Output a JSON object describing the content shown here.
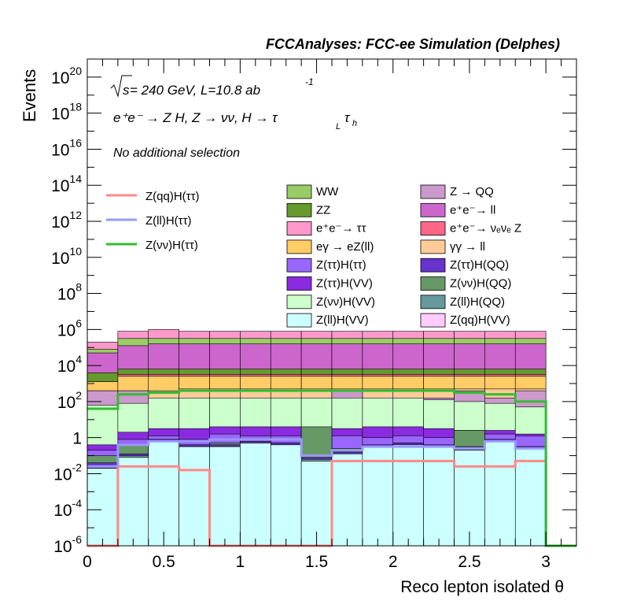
{
  "header": {
    "title": "FCCAnalyses: FCC-ee Simulation (Delphes)",
    "energy_prefix": "s",
    "energy_text": " = 240 GeV, L=10.8 ab",
    "lumi_exponent": "-1",
    "process_text": "e⁺e⁻ → Z H, Z → νν, H → τ",
    "tau_sub_1": "L",
    "tau_sub_2": "h",
    "selection_text": "No additional selection"
  },
  "colors": {
    "WW": "#99cc66",
    "ZZ": "#66992e",
    "ee_tautau": "#ff99cc",
    "egamma_eZll": "#ffcc66",
    "Ztautau_Htautau": "#9966ff",
    "Ztautau_HVV": "#8a2be2",
    "Znunu_HVV": "#ccffcc",
    "Zll_HVV": "#ccffff",
    "Z_QQ": "#cc99cc",
    "ee_ll": "#cc66cc",
    "ee_nunuZ": "#ff6688",
    "gammagamma_ll": "#ffcc99",
    "Ztautau_HQQ": "#6633cc",
    "Znunu_HQQ": "#669966",
    "Zll_HQQ": "#669999",
    "Zqq_HVV": "#ffccff",
    "sig_qq": "#ff8888",
    "sig_ll": "#9999ff",
    "sig_nunu": "#33bb33"
  },
  "chart_data": {
    "type": "stacked histogram (log y) with signal line overlays",
    "title": "FCCAnalyses: FCC-ee Simulation (Delphes)",
    "xlabel": "Reco lepton isolated θ",
    "ylabel": "Events",
    "xlim": [
      0,
      3.2
    ],
    "ylim": [
      1e-06,
      1e+21
    ],
    "log_y": true,
    "x_ticks": [
      0,
      0.5,
      1,
      1.5,
      2,
      2.5,
      3
    ],
    "x_tick_labels": [
      "0",
      "0.5",
      "1",
      "1.5",
      "2",
      "2.5",
      "3"
    ],
    "y_ticks": [
      1e-06,
      0.0001,
      0.01,
      1,
      100.0,
      10000.0,
      1000000.0,
      100000000.0,
      10000000000.0,
      1000000000000.0,
      100000000000000.0,
      1e+16,
      1e+18,
      1e+20
    ],
    "y_tick_labels": [
      {
        "base": "10",
        "exp": "-6"
      },
      {
        "base": "10",
        "exp": "-4"
      },
      {
        "base": "10",
        "exp": "-2"
      },
      {
        "base": "1",
        "exp": ""
      },
      {
        "base": "10",
        "exp": "2"
      },
      {
        "base": "10",
        "exp": "4"
      },
      {
        "base": "10",
        "exp": "6"
      },
      {
        "base": "10",
        "exp": "8"
      },
      {
        "base": "10",
        "exp": "10"
      },
      {
        "base": "10",
        "exp": "12"
      },
      {
        "base": "10",
        "exp": "14"
      },
      {
        "base": "10",
        "exp": "16"
      },
      {
        "base": "10",
        "exp": "18"
      },
      {
        "base": "10",
        "exp": "20"
      }
    ],
    "bin_edges": [
      0,
      0.2,
      0.4,
      0.6,
      0.8,
      1.0,
      1.2,
      1.4,
      1.6,
      1.8,
      2.0,
      2.2,
      2.4,
      2.6,
      2.8,
      3.0
    ],
    "stack_order": [
      "Zll_HVV",
      "Zqq_HVV",
      "Zll_HQQ",
      "Ztautau_HQQ",
      "Znunu_HQQ",
      "Ztautau_Htautau",
      "Ztautau_HVV",
      "Znunu_HVV",
      "Z_QQ",
      "gammagamma_ll",
      "egamma_eZll",
      "ee_nunuZ",
      "ZZ",
      "ee_ll",
      "WW",
      "ee_tautau"
    ],
    "legend": {
      "lines": [
        {
          "key": "sig_qq",
          "label": "Z(qq)H(ττ)"
        },
        {
          "key": "sig_ll",
          "label": "Z(ll)H(ττ)"
        },
        {
          "key": "sig_nunu",
          "label": "Z(νν)H(ττ)"
        }
      ],
      "col1": [
        {
          "key": "WW",
          "label": "WW"
        },
        {
          "key": "ZZ",
          "label": "ZZ"
        },
        {
          "key": "ee_tautau",
          "label": "e⁺e⁻→ ττ"
        },
        {
          "key": "egamma_eZll",
          "label": "eγ → eZ(ll)"
        },
        {
          "key": "Ztautau_Htautau",
          "label": "Z(ττ)H(ττ)"
        },
        {
          "key": "Ztautau_HVV",
          "label": "Z(ττ)H(VV)"
        },
        {
          "key": "Znunu_HVV",
          "label": "Z(νν)H(VV)"
        },
        {
          "key": "Zll_HVV",
          "label": "Z(ll)H(VV)"
        }
      ],
      "col2": [
        {
          "key": "Z_QQ",
          "label": "Z → QQ"
        },
        {
          "key": "ee_ll",
          "label": "e⁺e⁻→ ll"
        },
        {
          "key": "ee_nunuZ",
          "label": "e⁺e⁻→ νₑνₑ Z"
        },
        {
          "key": "gammagamma_ll",
          "label": "γγ → ll"
        },
        {
          "key": "Ztautau_HQQ",
          "label": "Z(ττ)H(QQ)"
        },
        {
          "key": "Znunu_HQQ",
          "label": "Z(νν)H(QQ)"
        },
        {
          "key": "Zll_HQQ",
          "label": "Z(ll)H(QQ)"
        },
        {
          "key": "Zqq_HVV",
          "label": "Z(qq)H(VV)"
        }
      ]
    },
    "stack_log10_tops": {
      "Zll_HVV": [
        -1.7,
        -1.1,
        -0.2,
        -0.5,
        -0.5,
        -0.3,
        -0.4,
        -1.3,
        -0.9,
        -0.5,
        -0.4,
        -0.5,
        -0.7,
        -0.2,
        -0.6
      ],
      "Zqq_HVV": [
        -1.7,
        -1.1,
        -0.2,
        -0.5,
        -0.5,
        -0.3,
        -0.4,
        -1.3,
        -0.9,
        -0.5,
        -0.4,
        -0.5,
        -0.7,
        -0.2,
        -0.6
      ],
      "Zll_HQQ": [
        -1.7,
        -1.0,
        -0.2,
        -0.5,
        -0.5,
        -0.3,
        -0.4,
        -1.2,
        -0.9,
        -0.5,
        -0.4,
        -0.5,
        -0.6,
        -0.2,
        -0.6
      ],
      "Ztautau_HQQ": [
        -1.4,
        -0.9,
        -0.1,
        -0.4,
        -0.4,
        -0.2,
        -0.3,
        -1.1,
        -0.8,
        -0.4,
        -0.3,
        -0.4,
        -0.5,
        -0.1,
        -0.5
      ],
      "Znunu_HQQ": [
        -1.0,
        -0.4,
        -0.1,
        -0.4,
        -0.3,
        -0.2,
        -0.3,
        0.6,
        -0.6,
        -0.4,
        -0.3,
        -0.4,
        0.4,
        -0.1,
        -0.5
      ],
      "Ztautau_Htautau": [
        -0.7,
        -0.1,
        0.1,
        -0.1,
        0.2,
        0.1,
        0.1,
        0.0,
        0.1,
        0.0,
        0.1,
        0.0,
        0.0,
        0.2,
        0.1
      ],
      "Ztautau_HVV": [
        -0.4,
        0.3,
        0.5,
        0.5,
        0.6,
        0.6,
        0.6,
        0.5,
        0.5,
        0.6,
        0.6,
        0.5,
        0.4,
        0.4,
        0.2
      ],
      "Znunu_HVV": [
        1.8,
        1.9,
        2.2,
        2.2,
        2.2,
        2.2,
        2.2,
        2.2,
        2.2,
        2.2,
        2.2,
        2.1,
        2.0,
        1.9,
        1.7
      ],
      "Z_QQ": [
        2.6,
        2.6,
        2.2,
        2.2,
        2.2,
        2.2,
        2.2,
        2.2,
        2.6,
        2.2,
        2.2,
        2.2,
        2.6,
        2.2,
        2.6
      ],
      "gammagamma_ll": [
        2.6,
        2.6,
        2.6,
        2.7,
        2.7,
        2.7,
        2.7,
        2.7,
        2.7,
        2.7,
        2.7,
        2.7,
        2.7,
        2.7,
        2.7
      ],
      "egamma_eZll": [
        3.1,
        3.4,
        3.4,
        3.4,
        3.4,
        3.4,
        3.4,
        3.4,
        3.4,
        3.4,
        3.4,
        3.4,
        3.4,
        3.4,
        3.4
      ],
      "ee_nunuZ": [
        3.1,
        3.5,
        3.5,
        3.5,
        3.5,
        3.5,
        3.5,
        3.5,
        3.5,
        3.5,
        3.5,
        3.5,
        3.5,
        3.5,
        3.5
      ],
      "ZZ": [
        3.6,
        3.8,
        3.8,
        3.8,
        3.8,
        3.8,
        3.8,
        3.8,
        3.8,
        3.8,
        3.8,
        3.8,
        3.8,
        3.8,
        3.8
      ],
      "ee_ll": [
        4.7,
        5.1,
        5.2,
        5.2,
        5.2,
        5.2,
        5.2,
        5.2,
        5.2,
        5.2,
        5.2,
        5.2,
        5.2,
        5.2,
        5.2
      ],
      "WW": [
        4.9,
        5.5,
        5.5,
        5.5,
        5.5,
        5.5,
        5.5,
        5.5,
        5.5,
        5.5,
        5.5,
        5.5,
        5.5,
        5.5,
        5.5
      ],
      "ee_tautau": [
        5.3,
        5.9,
        6.0,
        5.9,
        5.9,
        5.9,
        5.9,
        5.9,
        5.9,
        5.9,
        5.9,
        5.9,
        5.9,
        5.9,
        5.9
      ]
    },
    "signal_lines_log10": {
      "sig_qq": [
        -6.0,
        -1.6,
        -1.6,
        -1.8,
        -6.0,
        -6.0,
        -6.0,
        -6.0,
        -1.3,
        -1.3,
        -1.3,
        -1.3,
        -1.6,
        -1.6,
        -1.3
      ],
      "sig_ll": [
        -1.6,
        -0.4,
        -0.2,
        -0.2,
        -0.1,
        -0.1,
        -0.1,
        -1.0,
        -0.7,
        -0.5,
        -0.5,
        -0.5,
        -0.6,
        -0.2,
        -0.6
      ],
      "sig_nunu": [
        1.6,
        2.4,
        2.5,
        2.6,
        2.6,
        2.6,
        2.6,
        2.6,
        2.6,
        2.6,
        2.6,
        2.6,
        2.5,
        2.4,
        2.0
      ]
    }
  }
}
